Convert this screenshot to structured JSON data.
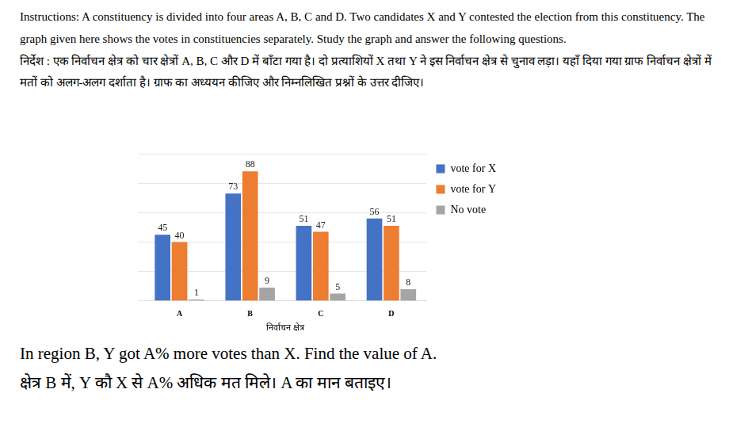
{
  "instructions": {
    "en": "Instructions: A constituency is divided into four areas A, B, C and D. Two candidates X and Y contested the election from this constituency. The graph given here shows the votes in constituencies separately. Study the graph and answer the following questions.",
    "hi": "निर्देश : एक निर्वाचन क्षेत्र को चार क्षेत्रों A, B, C और D में बाँटा गया है। दो प्रत्याशियों X तथा Y ने इस निर्वाचन क्षेत्र से चुनाव लड़ा। यहाँ दिया गया ग्राफ निर्वाचन क्षेत्रों में मतों को अलग-अलग दर्शाता है। ग्राफ का अध्ययन कीजिए और निम्नलिखित प्रश्नों के उत्तर दीजिए।"
  },
  "chart_data": {
    "type": "bar",
    "x_label": "निर्वाचन क्षेत्र",
    "categories": [
      "A",
      "B",
      "C",
      "D"
    ],
    "series": [
      {
        "name": "vote for X",
        "color": "#4472c4",
        "values": [
          45,
          73,
          51,
          56
        ]
      },
      {
        "name": "vote for Y",
        "color": "#ed7d31",
        "values": [
          40,
          88,
          47,
          51
        ]
      },
      {
        "name": "No vote",
        "color": "#a5a5a5",
        "values": [
          1,
          9,
          5,
          8
        ]
      }
    ],
    "ylim": [
      0,
      100
    ],
    "yticks": [
      0,
      20,
      40,
      60,
      80,
      100
    ],
    "grid": true,
    "legend": "right",
    "data_labels": true,
    "tick_labels": "x"
  },
  "question": {
    "en": "In region B, Y got A% more votes than X. Find the value of A.",
    "hi": "क्षेत्र B में, Y कौ X से A% अधिक मत मिले। A का मान बताइए।"
  }
}
